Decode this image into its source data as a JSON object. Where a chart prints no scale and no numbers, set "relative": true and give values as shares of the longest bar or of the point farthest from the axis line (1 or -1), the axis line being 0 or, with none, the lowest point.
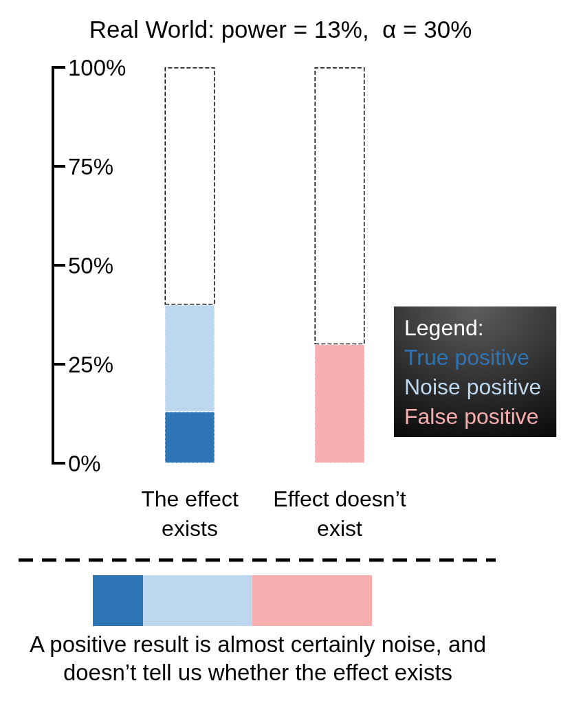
{
  "chart_data": [
    {
      "type": "bar",
      "title": "Real World: power = 13%,  α = 30%",
      "categories": [
        "The effect exists",
        "Effect doesn’t exist"
      ],
      "stacked": true,
      "series": [
        {
          "name": "True positive",
          "color": "#2e75b6",
          "values": [
            13,
            null
          ]
        },
        {
          "name": "Noise positive",
          "color": "#bdd7ee",
          "values": [
            27,
            null
          ]
        },
        {
          "name": "False positive",
          "color": "#f8aeae",
          "values": [
            null,
            30
          ]
        },
        {
          "color": "#ffffff",
          "values": [
            60,
            70
          ]
        }
      ],
      "ylim": [
        0,
        100
      ],
      "yticks": [
        {
          "value": 0,
          "label": "0%"
        },
        {
          "value": 25,
          "label": "25%"
        },
        {
          "value": 50,
          "label": "50%"
        },
        {
          "value": 75,
          "label": "75%"
        },
        {
          "value": 100,
          "label": "100%"
        }
      ],
      "grid": false,
      "legend": "right",
      "legend_title": "Legend:",
      "line_style": "dashed"
    },
    {
      "type": "bar",
      "orientation": "horizontal",
      "stacked": true,
      "relative": true,
      "categories": [
        null
      ],
      "series": [
        {
          "color": "#2e75b6",
          "values": [
            0.18
          ]
        },
        {
          "color": "#bdd7ee",
          "values": [
            0.39
          ]
        },
        {
          "color": "#f8aeae",
          "values": [
            0.43
          ]
        }
      ],
      "annotations": [
        "A positive result is almost certainly noise, and doesn’t tell us whether the effect exists"
      ]
    }
  ]
}
